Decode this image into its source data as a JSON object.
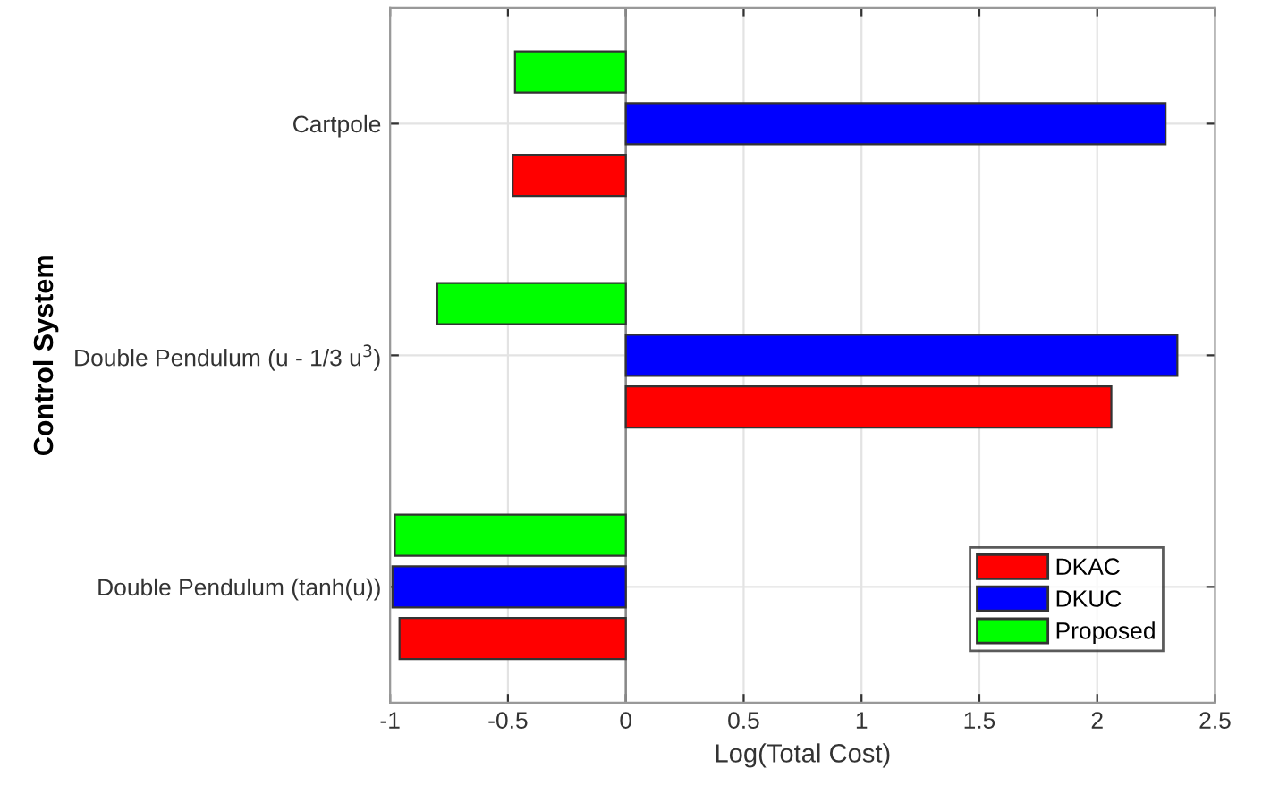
{
  "chart_data": {
    "type": "bar",
    "orientation": "horizontal",
    "xlabel": "Log(Total Cost)",
    "ylabel": "Control System",
    "categories": [
      "Cartpole",
      "Double Pendulum (u - 1/3 u$^{3}$)",
      "Double Pendulum (tanh(u))"
    ],
    "series": [
      {
        "name": "DKAC",
        "color": "#ff0000",
        "values": [
          -0.48,
          2.06,
          -0.96
        ]
      },
      {
        "name": "DKUC",
        "color": "#0000ff",
        "values": [
          2.29,
          2.34,
          -0.99
        ]
      },
      {
        "name": "Proposed",
        "color": "#00ff00",
        "values": [
          -0.47,
          -0.8,
          -0.98
        ]
      }
    ],
    "xlim": [
      -1,
      2.5
    ],
    "xticks": [
      -1,
      -0.5,
      0,
      0.5,
      1,
      1.5,
      2,
      2.5
    ],
    "grid": true,
    "legend": "bottom right"
  }
}
